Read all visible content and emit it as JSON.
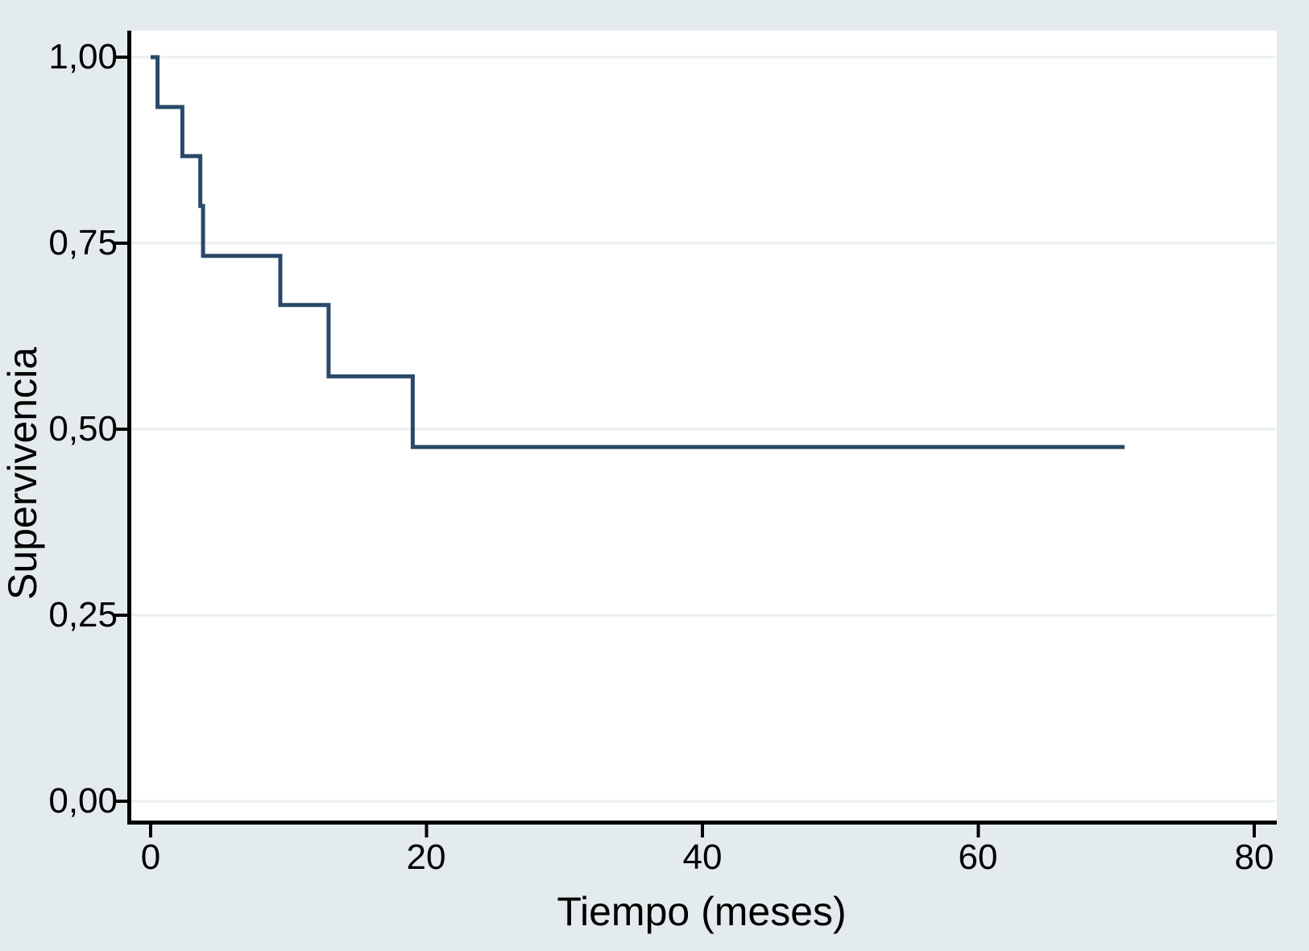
{
  "chart_data": {
    "type": "line",
    "subtype": "kaplan-meier-step",
    "title": "",
    "xlabel": "Tiempo (meses)",
    "ylabel": "Supervivencia",
    "x_axis": {
      "min": 0,
      "max": 80,
      "ticks": [
        {
          "v": 0,
          "label": "0"
        },
        {
          "v": 20,
          "label": "20"
        },
        {
          "v": 40,
          "label": "40"
        },
        {
          "v": 60,
          "label": "60"
        },
        {
          "v": 80,
          "label": "80"
        }
      ]
    },
    "y_axis": {
      "min": 0,
      "max": 1,
      "ticks": [
        {
          "v": 1.0,
          "label": "1,00"
        },
        {
          "v": 0.75,
          "label": "0,75"
        },
        {
          "v": 0.5,
          "label": "0,50"
        },
        {
          "v": 0.25,
          "label": "0,25"
        },
        {
          "v": 0.0,
          "label": "0,00"
        }
      ]
    },
    "grid": "horizontal",
    "legend": "none",
    "series": [
      {
        "name": "Supervivencia",
        "color": "#2a4969",
        "steps": [
          {
            "t": 0,
            "s": 1.0
          },
          {
            "t": 0.5,
            "s": 0.933
          },
          {
            "t": 2.3,
            "s": 0.867
          },
          {
            "t": 3.6,
            "s": 0.8
          },
          {
            "t": 3.8,
            "s": 0.733
          },
          {
            "t": 9.4,
            "s": 0.667
          },
          {
            "t": 12.9,
            "s": 0.571
          },
          {
            "t": 19.0,
            "s": 0.476
          }
        ],
        "end_t": 70.6
      }
    ],
    "colors": {
      "page_bg": "#e3ebed",
      "plot_bg": "#ffffff",
      "gridline": "#e8eff1",
      "axis": "#000000",
      "line": "#2a4969"
    }
  }
}
